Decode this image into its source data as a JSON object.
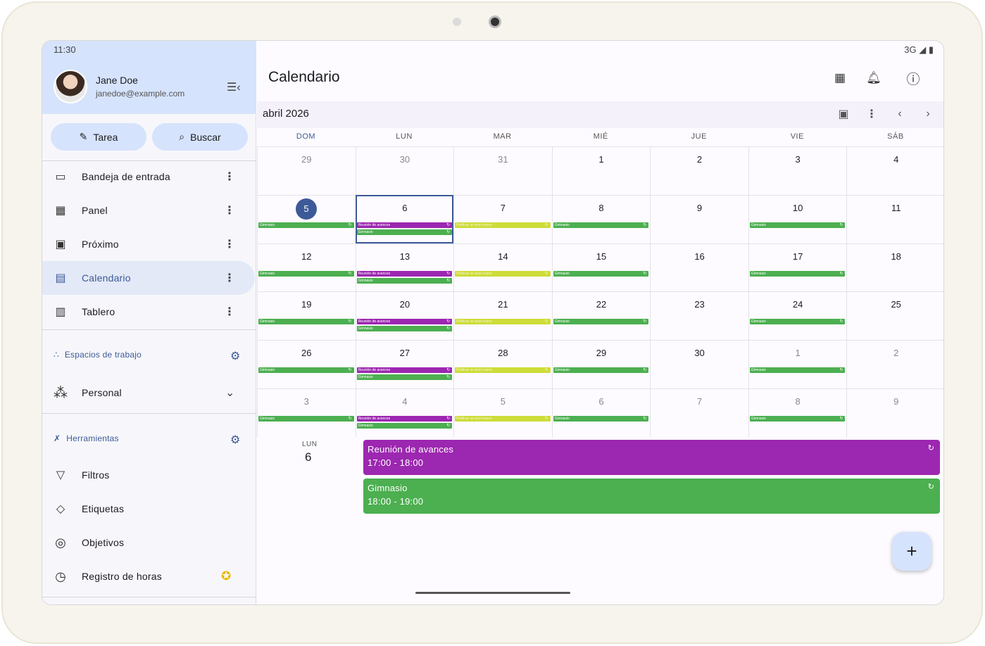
{
  "status": {
    "time": "11:30",
    "network": "3G"
  },
  "user": {
    "name": "Jane Doe",
    "email": "janedoe@example.com"
  },
  "quick_actions": {
    "task_label": "Tarea",
    "search_label": "Buscar"
  },
  "nav": [
    {
      "label": "Bandeja de entrada",
      "icon": "inbox-icon"
    },
    {
      "label": "Panel",
      "icon": "dashboard-icon"
    },
    {
      "label": "Próximo",
      "icon": "upcoming-icon"
    },
    {
      "label": "Calendario",
      "icon": "calendar-icon",
      "active": true
    },
    {
      "label": "Tablero",
      "icon": "board-icon"
    }
  ],
  "workspaces": {
    "header": "Espacios de trabajo",
    "current": "Personal"
  },
  "tools": {
    "header": "Herramientas",
    "items": [
      {
        "label": "Filtros",
        "icon": "filter-icon"
      },
      {
        "label": "Etiquetas",
        "icon": "tag-icon"
      },
      {
        "label": "Objetivos",
        "icon": "target-icon"
      },
      {
        "label": "Registro de horas",
        "icon": "clock-icon",
        "badge": "premium-badge-icon"
      }
    ]
  },
  "header": {
    "title": "Calendario"
  },
  "calendar": {
    "month_label": "abril 2026",
    "weekdays": [
      "DOM",
      "LUN",
      "MAR",
      "MIÉ",
      "JUE",
      "VIE",
      "SÁB"
    ],
    "today": 5,
    "weeks": [
      [
        {
          "d": "29",
          "m": 1
        },
        {
          "d": "30",
          "m": 1
        },
        {
          "d": "31",
          "m": 1
        },
        {
          "d": "1"
        },
        {
          "d": "2"
        },
        {
          "d": "3"
        },
        {
          "d": "4"
        }
      ],
      [
        {
          "d": "5",
          "today": 1,
          "ev": [
            "gym"
          ]
        },
        {
          "d": "6",
          "sel": 1,
          "ev": [
            "meet",
            "gym"
          ]
        },
        {
          "d": "7",
          "ev": [
            "post"
          ]
        },
        {
          "d": "8",
          "ev": [
            "gym"
          ]
        },
        {
          "d": "9"
        },
        {
          "d": "10",
          "ev": [
            "gym"
          ]
        },
        {
          "d": "11"
        }
      ],
      [
        {
          "d": "12",
          "ev": [
            "gym"
          ]
        },
        {
          "d": "13",
          "ev": [
            "meet",
            "gym"
          ]
        },
        {
          "d": "14",
          "ev": [
            "post"
          ]
        },
        {
          "d": "15",
          "ev": [
            "gym"
          ]
        },
        {
          "d": "16"
        },
        {
          "d": "17",
          "ev": [
            "gym"
          ]
        },
        {
          "d": "18"
        }
      ],
      [
        {
          "d": "19",
          "ev": [
            "gym"
          ]
        },
        {
          "d": "20",
          "ev": [
            "meet",
            "gym"
          ]
        },
        {
          "d": "21",
          "ev": [
            "post"
          ]
        },
        {
          "d": "22",
          "ev": [
            "gym"
          ]
        },
        {
          "d": "23"
        },
        {
          "d": "24",
          "ev": [
            "gym"
          ]
        },
        {
          "d": "25"
        }
      ],
      [
        {
          "d": "26",
          "ev": [
            "gym"
          ]
        },
        {
          "d": "27",
          "ev": [
            "meet",
            "gym"
          ]
        },
        {
          "d": "28",
          "ev": [
            "post"
          ]
        },
        {
          "d": "29",
          "ev": [
            "gym"
          ]
        },
        {
          "d": "30"
        },
        {
          "d": "1",
          "m": 1,
          "ev": [
            "gym"
          ]
        },
        {
          "d": "2",
          "m": 1
        }
      ],
      [
        {
          "d": "3",
          "m": 1,
          "ev": [
            "gym"
          ]
        },
        {
          "d": "4",
          "m": 1,
          "ev": [
            "meet",
            "gym"
          ]
        },
        {
          "d": "5",
          "m": 1,
          "ev": [
            "post"
          ]
        },
        {
          "d": "6",
          "m": 1,
          "ev": [
            "gym"
          ]
        },
        {
          "d": "7",
          "m": 1
        },
        {
          "d": "8",
          "m": 1,
          "ev": [
            "gym"
          ]
        },
        {
          "d": "9",
          "m": 1
        }
      ]
    ],
    "event_names": {
      "gym": "Gimnasio",
      "meet": "Reunión de avances",
      "post": "Publicar un post nuevo"
    }
  },
  "agenda": {
    "dow": "LUN",
    "day": "6",
    "events": [
      {
        "title": "Reunión de avances",
        "time": "17:00 - 18:00",
        "color": "#9c27b0"
      },
      {
        "title": "Gimnasio",
        "time": "18:00 - 19:00",
        "color": "#4caf50"
      }
    ]
  },
  "fab_label": "+"
}
